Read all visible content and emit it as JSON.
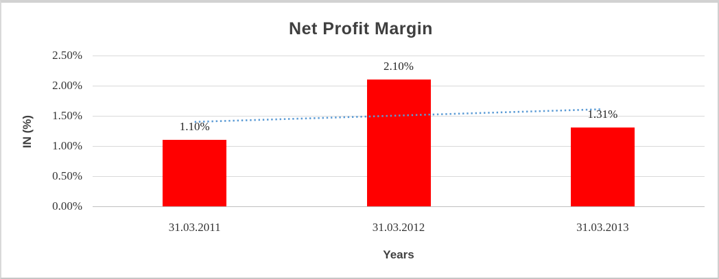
{
  "chart_data": {
    "type": "bar",
    "title": "Net Profit Margin",
    "xlabel": "Years",
    "ylabel": "IN (%)",
    "categories": [
      "31.03.2011",
      "31.03.2012",
      "31.03.2013"
    ],
    "values": [
      1.1,
      2.1,
      1.31
    ],
    "data_labels": [
      "1.10%",
      "2.10%",
      "1.31%"
    ],
    "y_ticks": [
      {
        "value": 0.0,
        "label": "0.00%"
      },
      {
        "value": 0.5,
        "label": "0.50%"
      },
      {
        "value": 1.0,
        "label": "1.00%"
      },
      {
        "value": 1.5,
        "label": "1.50%"
      },
      {
        "value": 2.0,
        "label": "2.00%"
      },
      {
        "value": 2.5,
        "label": "2.50%"
      }
    ],
    "ylim": [
      0,
      2.5
    ],
    "grid": true,
    "legend": "none",
    "trendline": {
      "type": "linear",
      "style": "dotted",
      "start_value": 1.4,
      "end_value": 1.61,
      "color": "#5b9bd5"
    },
    "colors": {
      "bar": "#ff0000",
      "gridline": "#d9d9d9",
      "axis_line": "#bfbfbf",
      "title_text": "#3f3f3f",
      "label_text": "#262626"
    }
  }
}
